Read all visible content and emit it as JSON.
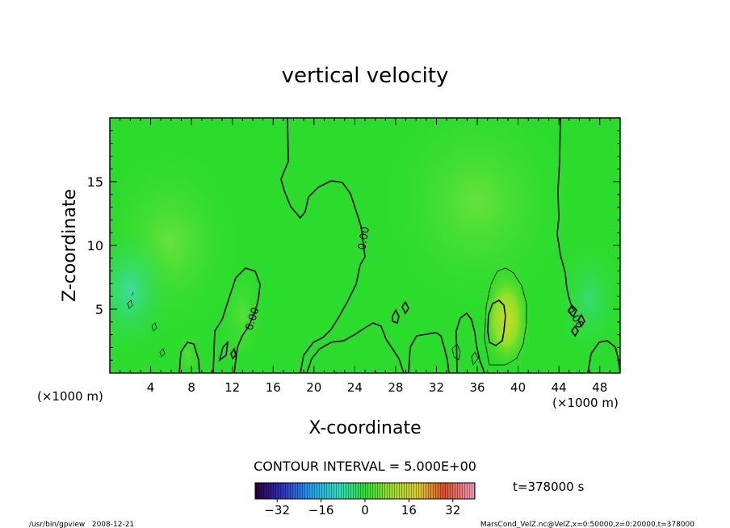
{
  "chart_data": {
    "type": "heatmap",
    "title": "vertical velocity",
    "xlabel": "X-coordinate",
    "ylabel": "Z-coordinate",
    "x_unit_left": "(×1000 m)",
    "x_unit_right": "(×1000 m)",
    "xlim": [
      0,
      50
    ],
    "ylim": [
      0,
      20
    ],
    "x_ticks": [
      4,
      8,
      12,
      16,
      20,
      24,
      28,
      32,
      36,
      40,
      44,
      48
    ],
    "y_ticks": [
      5,
      10,
      15
    ],
    "contour_interval_text": "CONTOUR INTERVAL = 5.000E+00",
    "contour_labels": [
      "0.00",
      "0.00",
      "0.00"
    ],
    "time_text": "t=378000 s",
    "colorbar": {
      "min": -40,
      "max": 40,
      "ticks": [
        -32,
        -16,
        0,
        16,
        32
      ]
    },
    "features": [
      {
        "kind": "updraft",
        "x": 38,
        "z": 4.5,
        "value": 10
      },
      {
        "kind": "weak_downdraft",
        "x": 2,
        "z": 7,
        "value": -5
      }
    ]
  },
  "footer": {
    "left": "/usr/bin/gpview   2008-12-21",
    "right": "MarsCond_VelZ.nc@VelZ,x=0:50000,z=0:20000,t=378000"
  },
  "colors": {
    "background_field": "#22dd22",
    "updraft": "#ccdd22",
    "downdraft": "#33ddaa"
  }
}
